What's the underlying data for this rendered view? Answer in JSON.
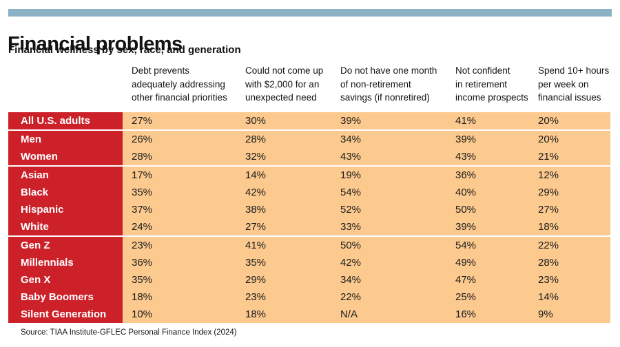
{
  "page": {
    "title": "Financial problems",
    "subtitle": "Financial wellness by sex, race, and generation",
    "source": "Source: TIAA Institute-GFLEC Personal Finance Index (2024)"
  },
  "colors": {
    "header_red": "#CD212A",
    "cell_peach": "#FCCA8F",
    "top_bar_blue": "#8AB2C4",
    "label_text": "#FFFFFF",
    "value_text": "#1A1A1A"
  },
  "chart_data": {
    "type": "table",
    "title": "Financial problems",
    "subtitle": "Financial wellness by sex, race, and generation",
    "source": "Source: TIAA Institute-GFLEC Personal Finance Index (2024)",
    "columns": [
      "Debt prevents adequately addressing other financial priorities",
      "Could not come up with $2,000 for an unexpected need",
      "Do not have one month of non-retirement savings (if nonretired)",
      "Not confident in retirement income prospects",
      "Spend 10+ hours per week on financial issues"
    ],
    "header_lines": [
      [
        "Debt prevents",
        "adequately addressing",
        "other financial priorities"
      ],
      [
        "Could not come up",
        "with $2,000 for an",
        "unexpected need"
      ],
      [
        "Do not have one month",
        "of non-retirement",
        "savings (if nonretired)"
      ],
      [
        "Not confident",
        "in retirement",
        "income prospects"
      ],
      [
        "Spend 10+ hours",
        "per week on",
        "financial issues"
      ]
    ],
    "groups": [
      {
        "rows": [
          {
            "label": "All U.S. adults",
            "values": [
              "27%",
              "30%",
              "39%",
              "41%",
              "20%"
            ]
          }
        ]
      },
      {
        "rows": [
          {
            "label": "Men",
            "values": [
              "26%",
              "28%",
              "34%",
              "39%",
              "20%"
            ]
          },
          {
            "label": "Women",
            "values": [
              "28%",
              "32%",
              "43%",
              "43%",
              "21%"
            ]
          }
        ]
      },
      {
        "rows": [
          {
            "label": "Asian",
            "values": [
              "17%",
              "14%",
              "19%",
              "36%",
              "12%"
            ]
          },
          {
            "label": "Black",
            "values": [
              "35%",
              "42%",
              "54%",
              "40%",
              "29%"
            ]
          },
          {
            "label": "Hispanic",
            "values": [
              "37%",
              "38%",
              "52%",
              "50%",
              "27%"
            ]
          },
          {
            "label": "White",
            "values": [
              "24%",
              "27%",
              "33%",
              "39%",
              "18%"
            ]
          }
        ]
      },
      {
        "rows": [
          {
            "label": "Gen Z",
            "values": [
              "23%",
              "41%",
              "50%",
              "54%",
              "22%"
            ]
          },
          {
            "label": "Millennials",
            "values": [
              "36%",
              "35%",
              "42%",
              "49%",
              "28%"
            ]
          },
          {
            "label": "Gen X",
            "values": [
              "35%",
              "29%",
              "34%",
              "47%",
              "23%"
            ]
          },
          {
            "label": "Baby Boomers",
            "values": [
              "18%",
              "23%",
              "22%",
              "25%",
              "14%"
            ]
          },
          {
            "label": "Silent Generation",
            "values": [
              "10%",
              "18%",
              "N/A",
              "16%",
              "9%"
            ]
          }
        ]
      }
    ]
  }
}
